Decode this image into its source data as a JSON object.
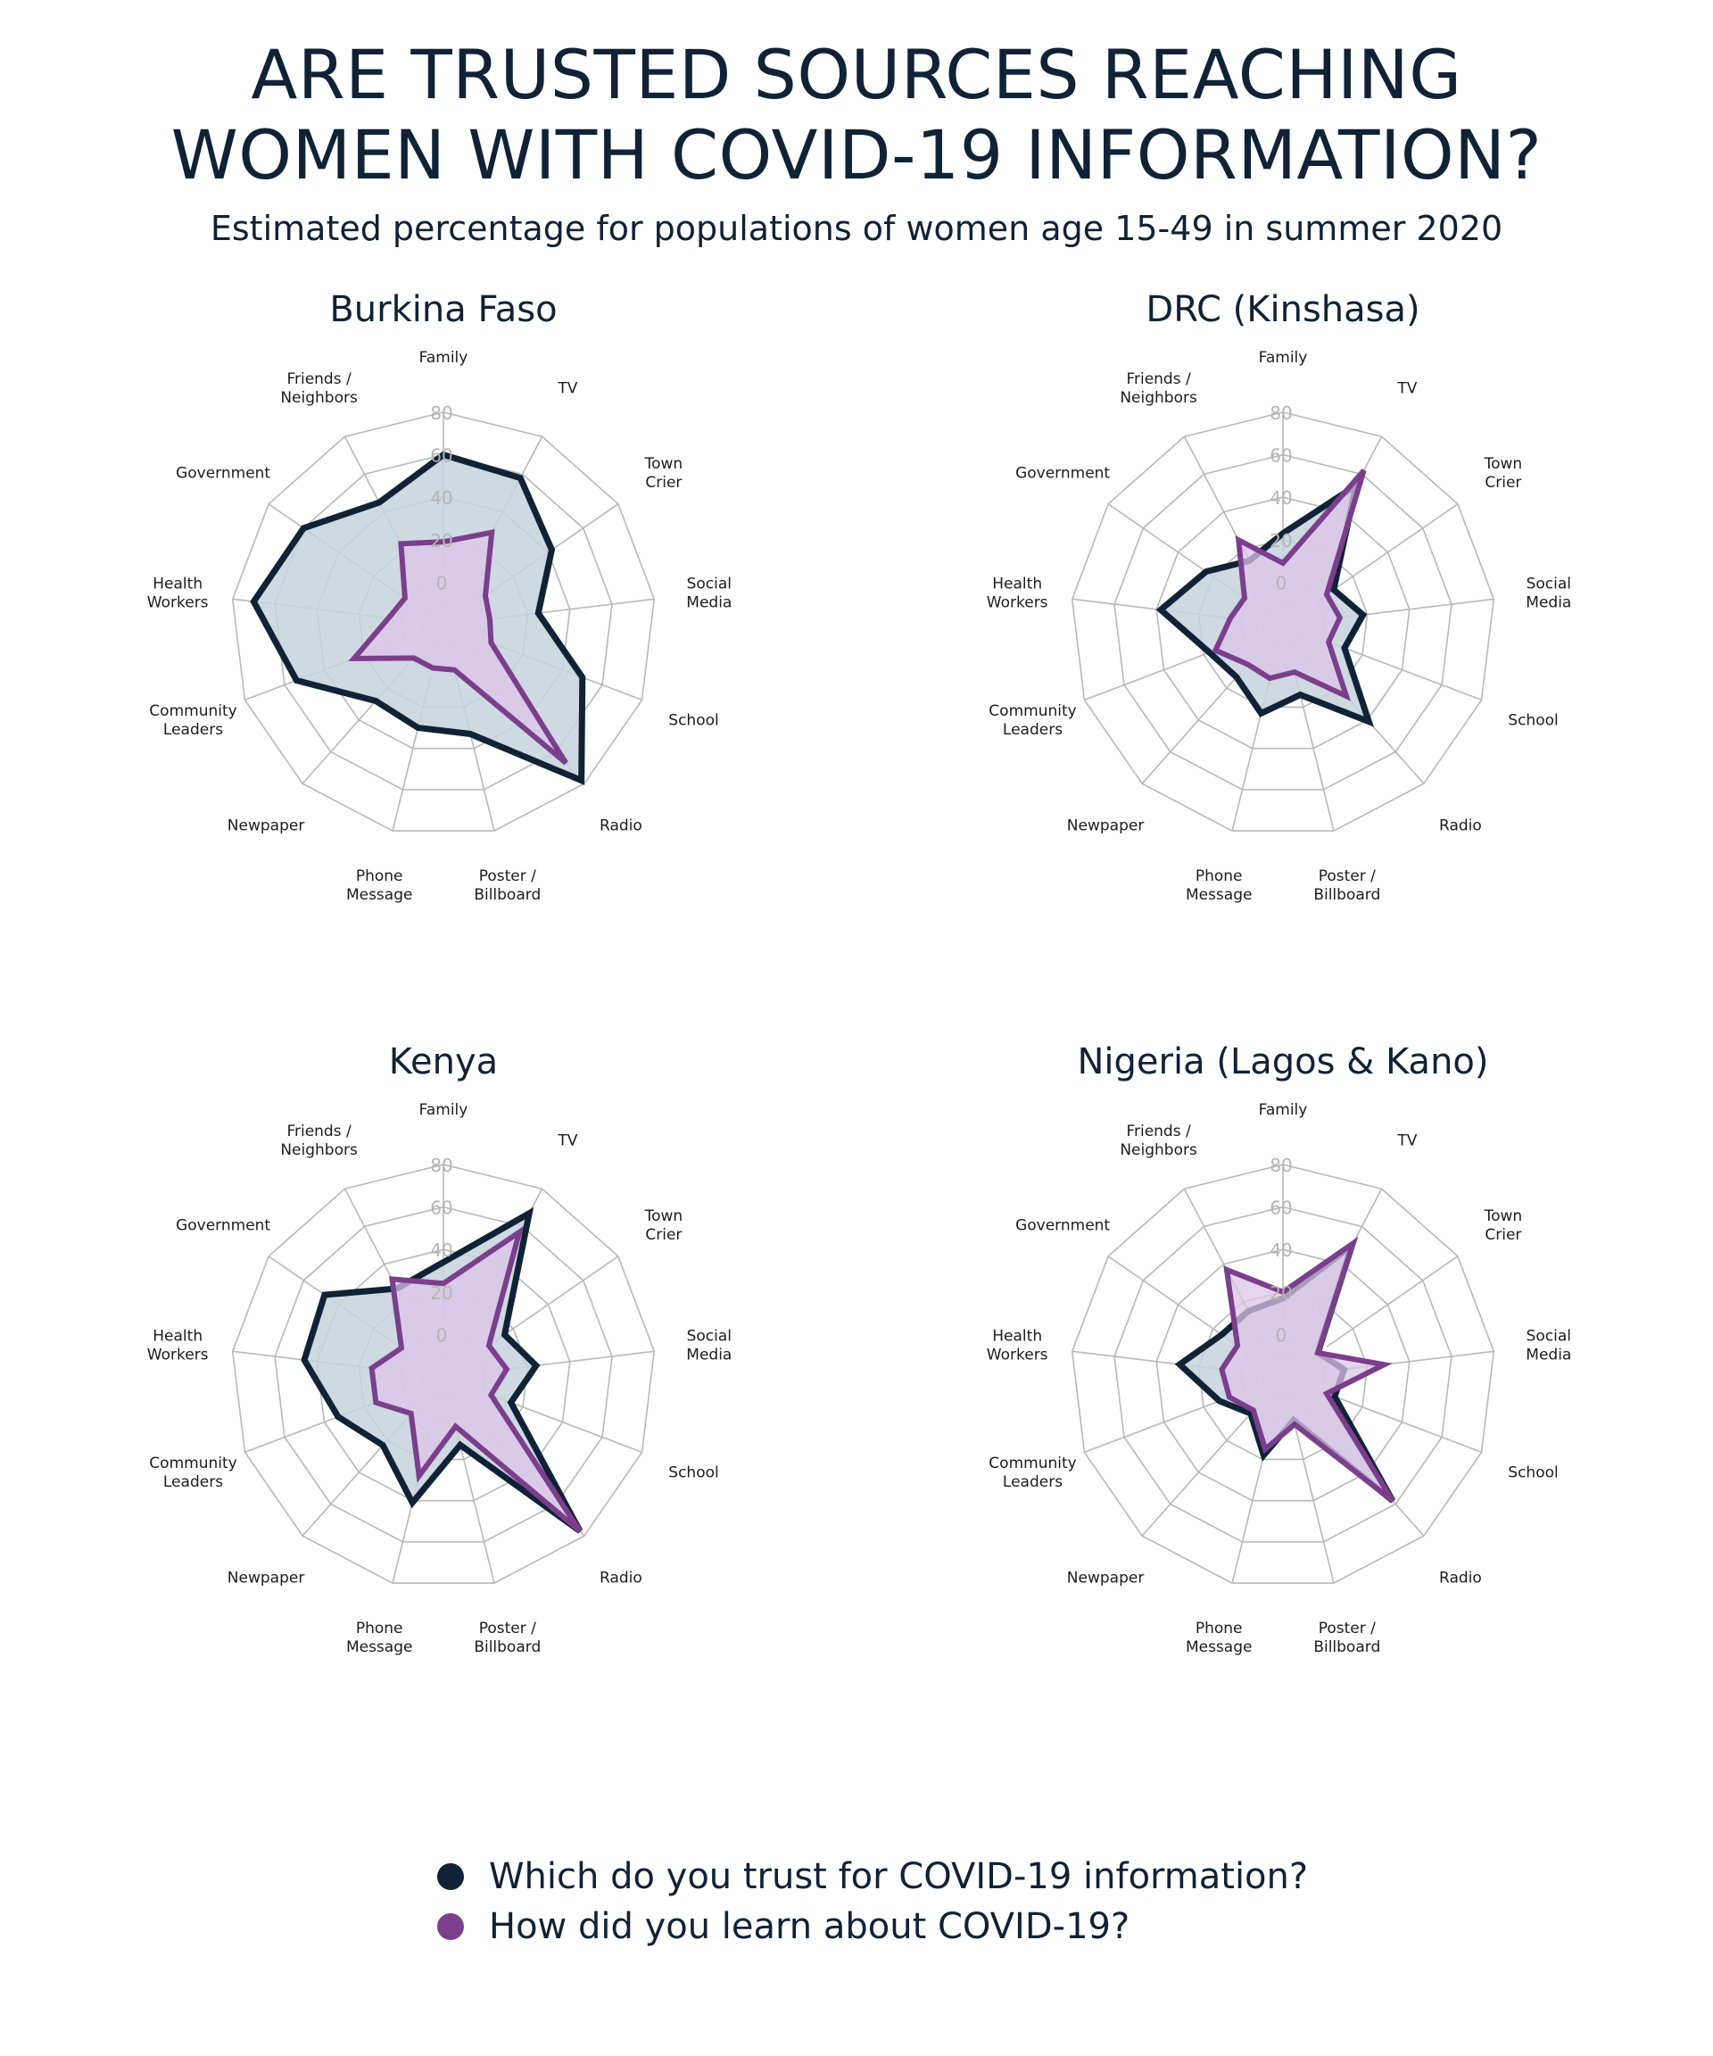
{
  "title_line1": "ARE TRUSTED SOURCES REACHING",
  "title_line2": "WOMEN WITH COVID-19 INFORMATION?",
  "subtitle": "Estimated percentage for populations of women age 15-49 in summer 2020",
  "colors": {
    "trust_line": "#0f2236",
    "trust_fill": "#c6d2dc",
    "learn_line": "#7b3e8c",
    "learn_fill": "#dcc6e8",
    "grid": "#b8b8b8",
    "tick": "#b5b5b5"
  },
  "legend": {
    "trust_label": "Which do you trust for COVID-19 information?",
    "learn_label": "How did you learn about COVID-19?"
  },
  "chart_data": [
    {
      "type": "radar",
      "title": "Burkina Faso",
      "categories": [
        "Family",
        "TV",
        "Town\nCrier",
        "Social\nMedia",
        "School",
        "Radio",
        "Poster /\nBillboard",
        "Phone\nMessage",
        "Newpaper",
        "Community\nLeaders",
        "Health\nWorkers",
        "Government",
        "Friends /\nNeighbors"
      ],
      "rlim": [
        -20,
        80
      ],
      "ticks": [
        0,
        20,
        40,
        60,
        80
      ],
      "series": [
        {
          "name": "Which do you trust for COVID-19 information?",
          "values": [
            60,
            58,
            42,
            25,
            50,
            78,
            33,
            30,
            28,
            54,
            70,
            60,
            45
          ]
        },
        {
          "name": "How did you learn about COVID-19?",
          "values": [
            19,
            29,
            4,
            2,
            4,
            67,
            2,
            1,
            1,
            25,
            6,
            2,
            23
          ]
        }
      ]
    },
    {
      "type": "radar",
      "title": "DRC (Kinshasa)",
      "categories": [
        "Family",
        "TV",
        "Town\nCrier",
        "Social\nMedia",
        "School",
        "Radio",
        "Poster /\nBillboard",
        "Phone\nMessage",
        "Newpaper",
        "Community\nLeaders",
        "Health\nWorkers",
        "Government",
        "Friends /\nNeighbors"
      ],
      "rlim": [
        -20,
        80
      ],
      "ticks": [
        0,
        20,
        40,
        60,
        80
      ],
      "series": [
        {
          "name": "Which do you trust for COVID-19 information?",
          "values": [
            23,
            54,
            9,
            18,
            11,
            41,
            14,
            23,
            13,
            17,
            38,
            24,
            14
          ]
        },
        {
          "name": "How did you learn about COVID-19?",
          "values": [
            9,
            62,
            5,
            7,
            3,
            25,
            3,
            6,
            5,
            14,
            5,
            2,
            25
          ]
        }
      ]
    },
    {
      "type": "radar",
      "title": "Kenya",
      "categories": [
        "Family",
        "TV",
        "Town\nCrier",
        "Social\nMedia",
        "School",
        "Radio",
        "Poster /\nBillboard",
        "Phone\nMessage",
        "Newpaper",
        "Community\nLeaders",
        "Health\nWorkers",
        "Government",
        "Friends /\nNeighbors"
      ],
      "rlim": [
        -20,
        80
      ],
      "ticks": [
        0,
        20,
        40,
        60,
        80
      ],
      "series": [
        {
          "name": "Which do you trust for COVID-19 information?",
          "values": [
            34,
            67,
            15,
            24,
            14,
            77,
            13,
            41,
            23,
            33,
            46,
            48,
            27
          ]
        },
        {
          "name": "How did you learn about COVID-19?",
          "values": [
            24,
            57,
            6,
            10,
            4,
            77,
            4,
            28,
            3,
            14,
            14,
            4,
            32
          ]
        }
      ]
    },
    {
      "type": "radar",
      "title": "Nigeria (Lagos & Kano)",
      "categories": [
        "Family",
        "TV",
        "Town\nCrier",
        "Social\nMedia",
        "School",
        "Radio",
        "Poster /\nBillboard",
        "Phone\nMessage",
        "Newpaper",
        "Community\nLeaders",
        "Health\nWorkers",
        "Government",
        "Friends /\nNeighbors"
      ],
      "rlim": [
        -20,
        80
      ],
      "ticks": [
        0,
        20,
        40,
        60,
        80
      ],
      "series": [
        {
          "name": "Which do you trust for COVID-19 information?",
          "values": [
            17,
            50,
            0,
            9,
            6,
            58,
            1,
            18,
            3,
            12,
            29,
            15,
            15
          ]
        },
        {
          "name": "How did you learn about COVID-19?",
          "values": [
            20,
            51,
            0,
            28,
            2,
            58,
            3,
            15,
            1,
            7,
            9,
            6,
            37
          ]
        }
      ]
    }
  ]
}
